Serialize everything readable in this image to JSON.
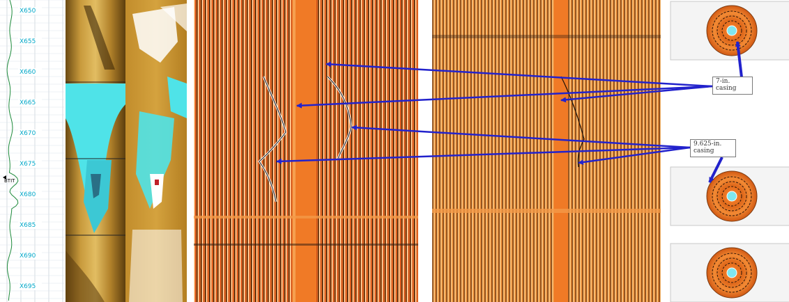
{
  "depth_track": {
    "labels": [
      "X650",
      "X655",
      "X660",
      "X665",
      "X670",
      "X675",
      "X680",
      "X685",
      "X690",
      "X695"
    ],
    "marker_label": "BTIT"
  },
  "callouts": {
    "casing_7": "7-in. casing",
    "casing_9625": "9.625-in. casing"
  },
  "colors": {
    "arrow": "#2222cc",
    "fluid": "#4fe3e8",
    "formation": "#b8842a",
    "ultrasonic_orange": "#f07a26",
    "depth_text": "#00a7c8"
  }
}
